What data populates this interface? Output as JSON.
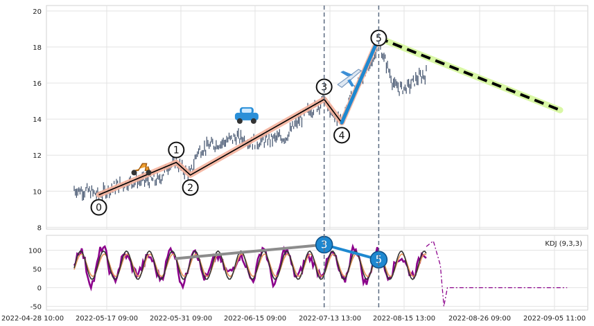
{
  "chart_data": [
    {
      "type": "candlestick",
      "ylim": [
        7.9,
        20.3
      ],
      "yticks": [
        8,
        10,
        12,
        14,
        16,
        18,
        20
      ],
      "xticks": [
        "2022-04-28 10:00",
        "2022-05-17 09:00",
        "2022-05-31 09:00",
        "2022-06-15 09:00",
        "2022-07-13 13:00",
        "2022-08-15 13:00",
        "2022-08-26 09:00",
        "2022-09-05 11:00"
      ],
      "grid": true,
      "price_path": [
        [
          0,
          10.1
        ],
        [
          0.04,
          10.0
        ],
        [
          0.07,
          9.8
        ],
        [
          0.12,
          10.3
        ],
        [
          0.18,
          10.6
        ],
        [
          0.24,
          10.6
        ],
        [
          0.27,
          11.5
        ],
        [
          0.29,
          11.6
        ],
        [
          0.31,
          11.2
        ],
        [
          0.33,
          10.9
        ],
        [
          0.35,
          12.2
        ],
        [
          0.38,
          12.5
        ],
        [
          0.42,
          12.7
        ],
        [
          0.46,
          13.0
        ],
        [
          0.5,
          12.8
        ],
        [
          0.52,
          12.7
        ],
        [
          0.56,
          12.9
        ],
        [
          0.6,
          13.0
        ],
        [
          0.63,
          13.7
        ],
        [
          0.66,
          14.4
        ],
        [
          0.69,
          14.7
        ],
        [
          0.71,
          15.1
        ],
        [
          0.735,
          14.1
        ],
        [
          0.76,
          14.0
        ],
        [
          0.8,
          15.8
        ],
        [
          0.83,
          16.6
        ],
        [
          0.85,
          17.4
        ],
        [
          0.865,
          18.4
        ],
        [
          0.875,
          17.6
        ],
        [
          0.89,
          16.9
        ],
        [
          0.91,
          15.8
        ],
        [
          0.93,
          15.7
        ],
        [
          0.95,
          15.8
        ],
        [
          0.97,
          16.2
        ],
        [
          1.0,
          16.5
        ]
      ],
      "wave_points": [
        {
          "label": "0",
          "x": 0.07,
          "y": 9.8
        },
        {
          "label": "1",
          "x": 0.29,
          "y": 11.6
        },
        {
          "label": "2",
          "x": 0.33,
          "y": 10.9
        },
        {
          "label": "3",
          "x": 0.71,
          "y": 15.1
        },
        {
          "label": "4",
          "x": 0.76,
          "y": 13.8
        },
        {
          "label": "5",
          "x": 0.865,
          "y": 18.5
        }
      ],
      "forecast_line": {
        "from": [
          0.865,
          18.5
        ],
        "to": [
          1.38,
          14.5
        ]
      },
      "impulse_segment": {
        "from": [
          0.76,
          13.8
        ],
        "to": [
          0.865,
          18.5
        ]
      },
      "markers": [
        {
          "icon": "scooter-icon",
          "x": 0.19,
          "y": 11.3
        },
        {
          "icon": "car-icon",
          "x": 0.49,
          "y": 14.2
        },
        {
          "icon": "airplane-icon",
          "x": 0.78,
          "y": 16.3
        }
      ],
      "vlines_x": [
        0.71,
        0.865
      ],
      "colors": {
        "trend": "#f4b19c",
        "wave": "#000000",
        "impulse": "#1e88d0",
        "forecast_glow": "#d9f7a5",
        "vline": "#5a6a80",
        "candle": "#3e4f6a"
      }
    },
    {
      "type": "line",
      "legend": "KDJ (9,3,3)",
      "ylim": [
        -60,
        140
      ],
      "yticks": [
        -50,
        0,
        50,
        100
      ],
      "grid": true,
      "series": [
        {
          "key": "J",
          "color": "#8b008b"
        },
        {
          "key": "D",
          "color": "#e8945a"
        },
        {
          "key": "K",
          "color": "#333333"
        }
      ],
      "divergence_points": [
        {
          "label": "3",
          "x": 0.71,
          "y": 115
        },
        {
          "label": "5",
          "x": 0.865,
          "y": 75
        }
      ],
      "trend_start": [
        0.29,
        78
      ],
      "colors": {
        "trend": "#8c8c8c",
        "impulse": "#1e88d0"
      }
    }
  ]
}
